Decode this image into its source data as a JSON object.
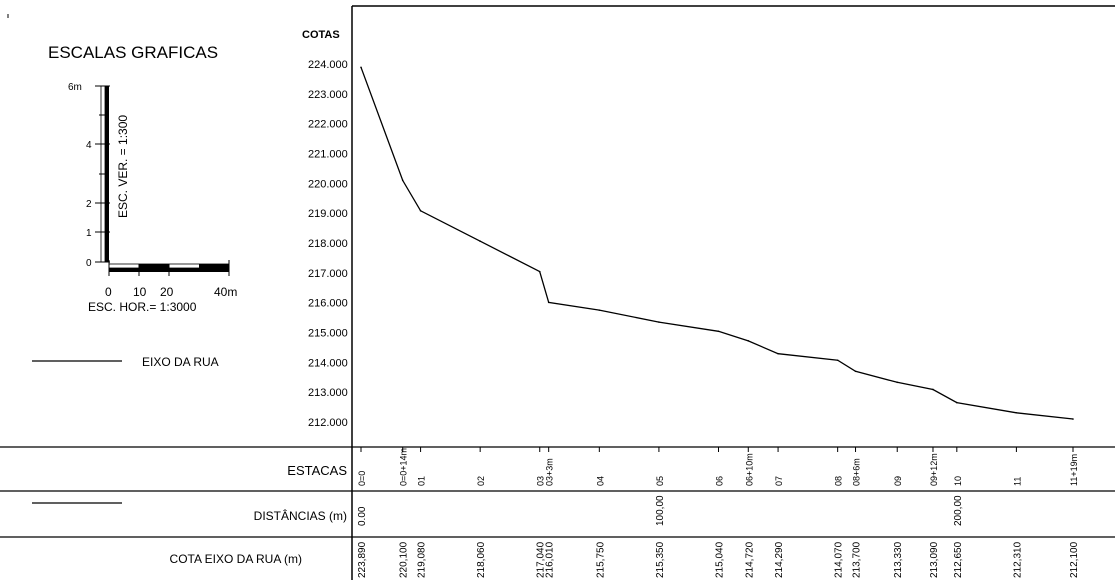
{
  "scales": {
    "title": "ESCALAS GRAFICAS",
    "vertical_label": "ESC. VER. = 1:300",
    "vertical_ticks": [
      "6m",
      "4",
      "2",
      "1",
      "0"
    ],
    "horizontal_ticks": [
      "0",
      "10",
      "20",
      "40m"
    ],
    "horizontal_label": "ESC. HOR.= 1:3000"
  },
  "legend": {
    "label": "EIXO DA RUA"
  },
  "rows": {
    "estacas": "ESTACAS",
    "distancias": "DISTÂNCIAS (m)",
    "cota": "COTA EIXO DA RUA (m)"
  },
  "chart_data": {
    "type": "line",
    "ylabel": "COTAS",
    "ylim": [
      212,
      224
    ],
    "yticks": [
      "224.000",
      "223.000",
      "222.000",
      "221.000",
      "220.000",
      "219.000",
      "218.000",
      "217.000",
      "216.000",
      "215.000",
      "214.000",
      "213.000",
      "212.000"
    ],
    "xlim": [
      0,
      239
    ],
    "series": [
      {
        "name": "EIXO DA RUA",
        "points": [
          {
            "x": 0,
            "y": 223.89
          },
          {
            "x": 14,
            "y": 220.1
          },
          {
            "x": 20,
            "y": 219.08
          },
          {
            "x": 40,
            "y": 218.06
          },
          {
            "x": 60,
            "y": 217.04
          },
          {
            "x": 63,
            "y": 216.01
          },
          {
            "x": 80,
            "y": 215.75
          },
          {
            "x": 100,
            "y": 215.35
          },
          {
            "x": 120,
            "y": 215.04
          },
          {
            "x": 130,
            "y": 214.72
          },
          {
            "x": 140,
            "y": 214.29
          },
          {
            "x": 160,
            "y": 214.07
          },
          {
            "x": 166,
            "y": 213.7
          },
          {
            "x": 180,
            "y": 213.33
          },
          {
            "x": 192,
            "y": 213.09
          },
          {
            "x": 200,
            "y": 212.65
          },
          {
            "x": 220,
            "y": 212.31
          },
          {
            "x": 239,
            "y": 212.1
          }
        ]
      }
    ],
    "estacas": [
      {
        "label": "0=0",
        "x": 0
      },
      {
        "label": "0=0+14m",
        "x": 14
      },
      {
        "label": "01",
        "x": 20
      },
      {
        "label": "02",
        "x": 40
      },
      {
        "label": "03",
        "x": 60
      },
      {
        "label": "03+3m",
        "x": 63
      },
      {
        "label": "04",
        "x": 80
      },
      {
        "label": "05",
        "x": 100
      },
      {
        "label": "06",
        "x": 120
      },
      {
        "label": "06+10m",
        "x": 130
      },
      {
        "label": "07",
        "x": 140
      },
      {
        "label": "08",
        "x": 160
      },
      {
        "label": "08+6m",
        "x": 166
      },
      {
        "label": "09",
        "x": 180
      },
      {
        "label": "09+12m",
        "x": 192
      },
      {
        "label": "10",
        "x": 200
      },
      {
        "label": "11",
        "x": 220
      },
      {
        "label": "11+19m",
        "x": 239
      }
    ],
    "distancias": [
      {
        "label": "0.00",
        "x": 0
      },
      {
        "label": "100,00",
        "x": 100
      },
      {
        "label": "200,00",
        "x": 200
      }
    ],
    "cotas": [
      {
        "label": "223,890",
        "x": 0
      },
      {
        "label": "220,100",
        "x": 14
      },
      {
        "label": "219,080",
        "x": 20
      },
      {
        "label": "218,060",
        "x": 40
      },
      {
        "label": "217,040",
        "x": 60
      },
      {
        "label": "216,010",
        "x": 63
      },
      {
        "label": "215,750",
        "x": 80
      },
      {
        "label": "215,350",
        "x": 100
      },
      {
        "label": "215,040",
        "x": 120
      },
      {
        "label": "214,720",
        "x": 130
      },
      {
        "label": "214,290",
        "x": 140
      },
      {
        "label": "214,070",
        "x": 160
      },
      {
        "label": "213,700",
        "x": 166
      },
      {
        "label": "213,330",
        "x": 180
      },
      {
        "label": "213,090",
        "x": 192
      },
      {
        "label": "212,650",
        "x": 200
      },
      {
        "label": "212,310",
        "x": 220
      },
      {
        "label": "212,100",
        "x": 239
      }
    ]
  }
}
